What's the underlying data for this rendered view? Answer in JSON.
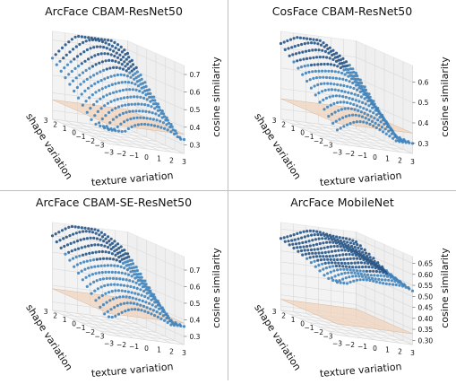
{
  "figure": {
    "colors": {
      "points": "#3a80ba",
      "points_dark": "#1f4f82",
      "floor_plane": "#f0d3bb",
      "floor_edge": "#d8b79c",
      "pane": "#f3f3f3",
      "grid": "#d9d9d9"
    }
  },
  "chart_data": [
    {
      "type": "scatter",
      "title": "ArcFace CBAM-ResNet50",
      "xlabel": "texture variation",
      "ylabel": "shape variation",
      "zlabel": "cosine similarity",
      "x_ticks": [
        "−3",
        "−2",
        "−1",
        "0",
        "1",
        "2",
        "3"
      ],
      "y_ticks": [
        "−3",
        "−2",
        "−1",
        "0",
        "1",
        "2",
        "3"
      ],
      "z_ticks": [
        "0.3",
        "0.4",
        "0.5",
        "0.6",
        "0.7"
      ],
      "xlim": [
        -3,
        3
      ],
      "ylim": [
        -3,
        3
      ],
      "zlim": [
        0.25,
        0.75
      ],
      "grid": true,
      "floor_plane_z": 0.36,
      "surface": {
        "z_min": 0.33,
        "z_max": 0.74,
        "shape_slope": 0.062,
        "texture_slope": 0.012,
        "bend": -0.014,
        "rows": 14,
        "cols": 24
      }
    },
    {
      "type": "scatter",
      "title": "CosFace CBAM-ResNet50",
      "xlabel": "texture variation",
      "ylabel": "shape variation",
      "zlabel": "cosine similarity",
      "x_ticks": [
        "−3",
        "−2",
        "−1",
        "0",
        "1",
        "2",
        "3"
      ],
      "y_ticks": [
        "−3",
        "−2",
        "−1",
        "0",
        "1",
        "2",
        "3"
      ],
      "z_ticks": [
        "0.3",
        "0.4",
        "0.5",
        "0.6"
      ],
      "xlim": [
        -3,
        3
      ],
      "ylim": [
        -3,
        3
      ],
      "zlim": [
        0.25,
        0.68
      ],
      "grid": true,
      "floor_plane_z": 0.35,
      "surface": {
        "z_min": 0.3,
        "z_max": 0.66,
        "shape_slope": 0.05,
        "texture_slope": -0.018,
        "bend": -0.01,
        "rows": 14,
        "cols": 24
      }
    },
    {
      "type": "scatter",
      "title": "ArcFace CBAM-SE-ResNet50",
      "xlabel": "texture variation",
      "ylabel": "shape variation",
      "zlabel": "cosine similarity",
      "x_ticks": [
        "−3",
        "−2",
        "−1",
        "0",
        "1",
        "2",
        "3"
      ],
      "y_ticks": [
        "−3",
        "−2",
        "−1",
        "0",
        "1",
        "2",
        "3"
      ],
      "z_ticks": [
        "0.3",
        "0.4",
        "0.5",
        "0.6",
        "0.7"
      ],
      "xlim": [
        -3,
        3
      ],
      "ylim": [
        -3,
        3
      ],
      "zlim": [
        0.25,
        0.78
      ],
      "grid": true,
      "floor_plane_z": 0.38,
      "surface": {
        "z_min": 0.36,
        "z_max": 0.77,
        "shape_slope": 0.06,
        "texture_slope": -0.01,
        "bend": -0.012,
        "rows": 14,
        "cols": 24
      }
    },
    {
      "type": "scatter",
      "title": "ArcFace MobileNet",
      "xlabel": "texture variation",
      "ylabel": "shape variation",
      "zlabel": "cosine similarity",
      "x_ticks": [
        "−3",
        "−2",
        "−1",
        "0",
        "1",
        "2",
        "3"
      ],
      "y_ticks": [
        "−3",
        "−2",
        "−1",
        "0",
        "1",
        "2",
        "3"
      ],
      "z_ticks": [
        "0.30",
        "0.35",
        "0.40",
        "0.45",
        "0.50",
        "0.55",
        "0.60",
        "0.65"
      ],
      "xlim": [
        -3,
        3
      ],
      "ylim": [
        -3,
        3
      ],
      "zlim": [
        0.28,
        0.68
      ],
      "grid": true,
      "floor_plane_z": 0.33,
      "surface": {
        "z_min": 0.52,
        "z_max": 0.66,
        "shape_slope": 0.018,
        "texture_slope": 0.003,
        "bend": -0.004,
        "rows": 14,
        "cols": 24
      }
    }
  ]
}
